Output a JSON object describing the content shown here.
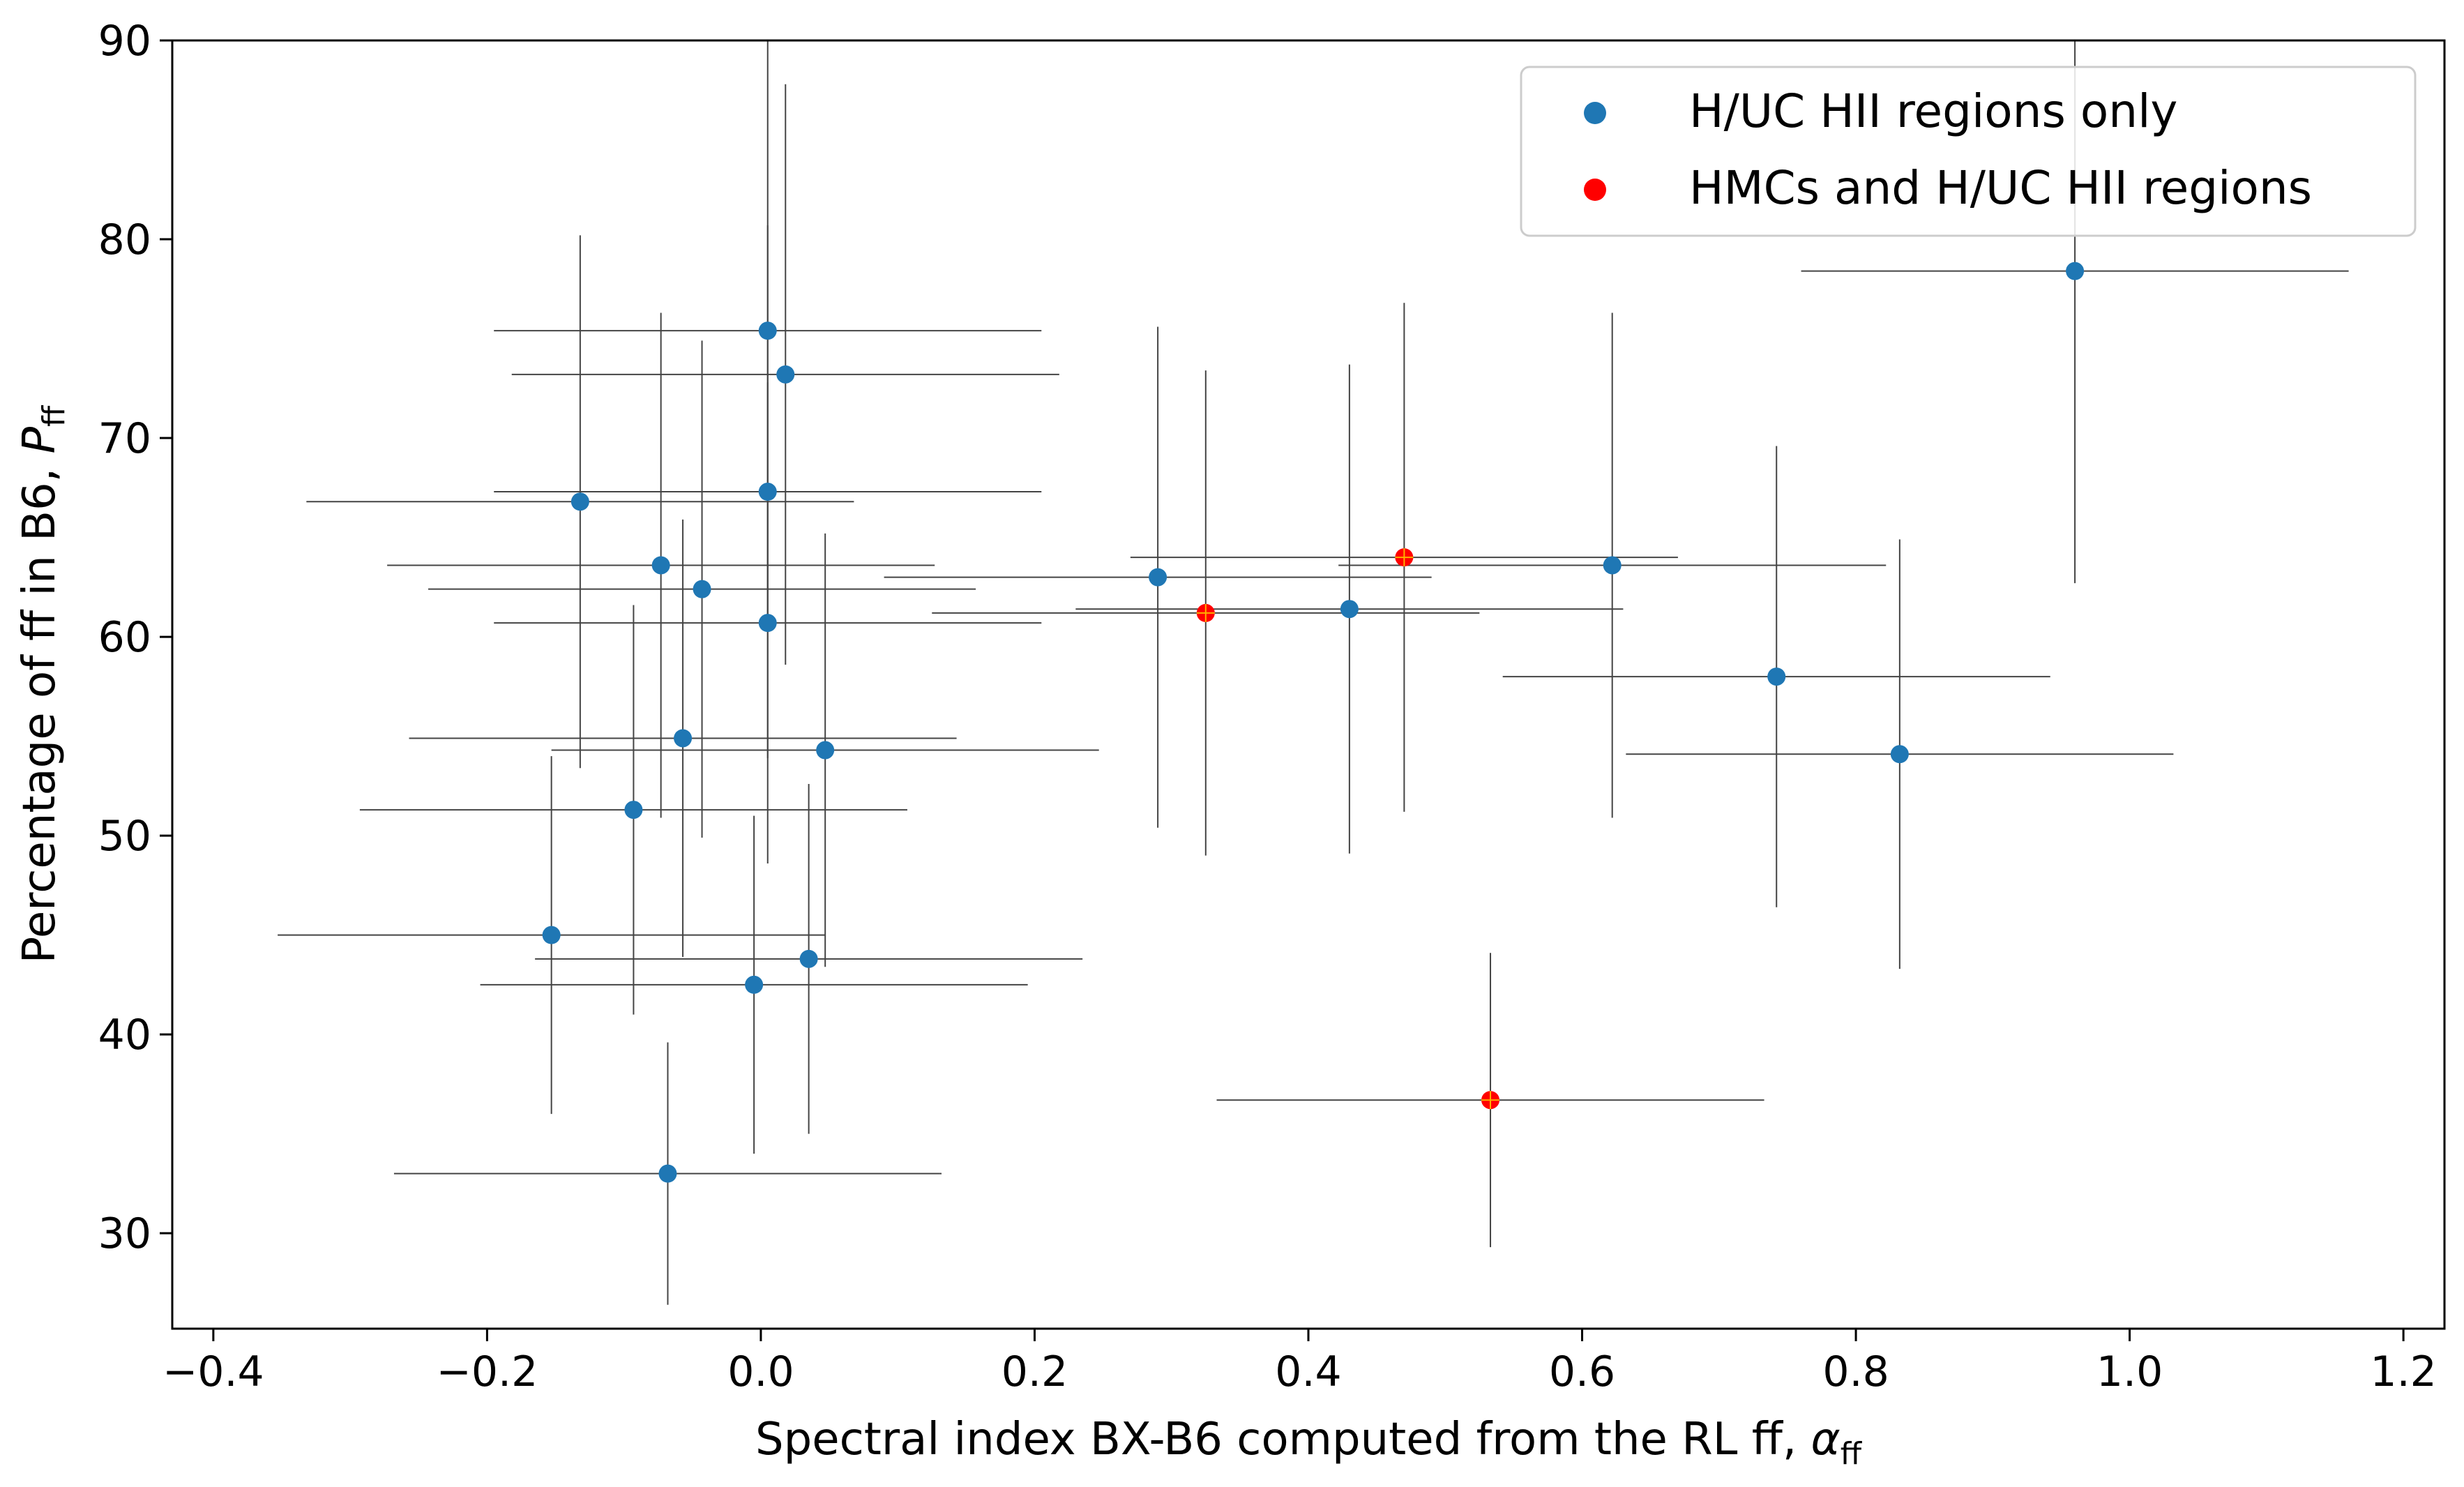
{
  "chart_data": {
    "type": "scatter",
    "xlabel": "Spectral index BX-B6 computed from the RL ff, ",
    "xlabel_symbol": "α",
    "xlabel_sub": "ff",
    "ylabel": "Percentage of ff in B6, ",
    "ylabel_symbol": "P",
    "ylabel_sub": "ff",
    "xlim": [
      -0.43,
      1.23
    ],
    "ylim": [
      25.2,
      90
    ],
    "xticks": [
      -0.4,
      -0.2,
      0.0,
      0.2,
      0.4,
      0.6,
      0.8,
      1.0,
      1.2
    ],
    "xtick_labels": [
      "−0.4",
      "−0.2",
      "0.0",
      "0.2",
      "0.4",
      "0.6",
      "0.8",
      "1.0",
      "1.2"
    ],
    "yticks": [
      30,
      40,
      50,
      60,
      70,
      80,
      90
    ],
    "ytick_labels": [
      "30",
      "40",
      "50",
      "60",
      "70",
      "80",
      "90"
    ],
    "grid": false,
    "legend_position": "top-right",
    "colors": {
      "blue": "#1f77b4",
      "red": "#ff0000",
      "errorbar": "#444444"
    },
    "series": [
      {
        "name": "H/UC HII regions only",
        "color": "#1f77b4",
        "points": [
          {
            "x": 0.005,
            "y": 75.4,
            "xerr": 0.2,
            "yerr": 14.6
          },
          {
            "x": 0.018,
            "y": 73.2,
            "xerr": 0.2,
            "yerr": 14.6
          },
          {
            "x": -0.132,
            "y": 66.8,
            "xerr": 0.2,
            "yerr": 13.4
          },
          {
            "x": 0.005,
            "y": 67.3,
            "xerr": 0.2,
            "yerr": 13.4
          },
          {
            "x": -0.073,
            "y": 63.6,
            "xerr": 0.2,
            "yerr": 12.7
          },
          {
            "x": -0.043,
            "y": 62.4,
            "xerr": 0.2,
            "yerr": 12.5
          },
          {
            "x": 0.005,
            "y": 60.7,
            "xerr": 0.2,
            "yerr": 12.1
          },
          {
            "x": -0.057,
            "y": 54.9,
            "xerr": 0.2,
            "yerr": 11.0
          },
          {
            "x": 0.047,
            "y": 54.3,
            "xerr": 0.2,
            "yerr": 10.9
          },
          {
            "x": -0.093,
            "y": 51.3,
            "xerr": 0.2,
            "yerr": 10.3
          },
          {
            "x": -0.153,
            "y": 45.0,
            "xerr": 0.2,
            "yerr": 9.0
          },
          {
            "x": 0.035,
            "y": 43.8,
            "xerr": 0.2,
            "yerr": 8.8
          },
          {
            "x": -0.005,
            "y": 42.5,
            "xerr": 0.2,
            "yerr": 8.5
          },
          {
            "x": -0.068,
            "y": 33.0,
            "xerr": 0.2,
            "yerr": 6.6
          },
          {
            "x": 0.29,
            "y": 63.0,
            "xerr": 0.2,
            "yerr": 12.6
          },
          {
            "x": 0.43,
            "y": 61.4,
            "xerr": 0.2,
            "yerr": 12.3
          },
          {
            "x": 0.622,
            "y": 63.6,
            "xerr": 0.2,
            "yerr": 12.7
          },
          {
            "x": 0.742,
            "y": 58.0,
            "xerr": 0.2,
            "yerr": 11.6
          },
          {
            "x": 0.832,
            "y": 54.1,
            "xerr": 0.2,
            "yerr": 10.8
          },
          {
            "x": 0.96,
            "y": 78.4,
            "xerr": 0.2,
            "yerr": 15.7
          }
        ]
      },
      {
        "name": "HMCs and H/UC HII regions",
        "color": "#ff0000",
        "points": [
          {
            "x": 0.325,
            "y": 61.2,
            "xerr": 0.2,
            "yerr": 12.2
          },
          {
            "x": 0.47,
            "y": 64.0,
            "xerr": 0.2,
            "yerr": 12.8
          },
          {
            "x": 0.533,
            "y": 36.7,
            "xerr": 0.2,
            "yerr": 7.4
          }
        ]
      }
    ]
  }
}
